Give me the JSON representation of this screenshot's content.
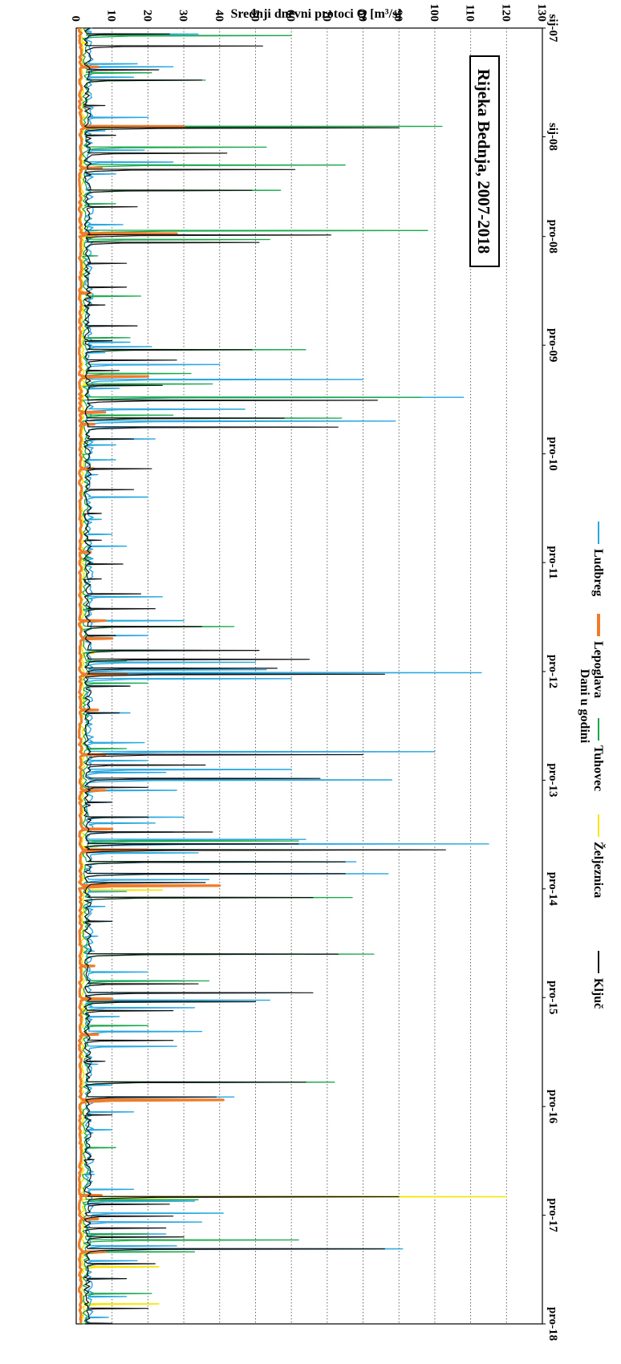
{
  "chart_data": {
    "type": "line",
    "title": "Rijeka Bednja, 2007-2018",
    "ylabel": "Srednji dnevni protoci Q [m³/s]",
    "xlabel": "Dani u godini",
    "ylim": [
      0,
      130
    ],
    "y_ticks": [
      0,
      10,
      20,
      30,
      40,
      50,
      60,
      70,
      80,
      90,
      100,
      110,
      120,
      130
    ],
    "x_ticks": [
      "sij-07",
      "sij-08",
      "pro-08",
      "pro-09",
      "pro-10",
      "pro-11",
      "pro-12",
      "pro-13",
      "pro-14",
      "pro-15",
      "pro-16",
      "pro-17",
      "pro-18"
    ],
    "x_tick_positions": [
      0,
      365,
      700,
      1065,
      1430,
      1795,
      2161,
      2526,
      2891,
      3256,
      3622,
      3987,
      4352
    ],
    "grid": "horizontal dotted",
    "orientation": "rotated 90° clockwise",
    "legend_position": "bottom",
    "series": [
      {
        "name": "Ludbreg",
        "color": "#29a8e0",
        "peaks": [
          [
            20,
            34
          ],
          [
            120,
            17
          ],
          [
            130,
            27
          ],
          [
            165,
            16
          ],
          [
            300,
            20
          ],
          [
            345,
            8
          ],
          [
            360,
            10
          ],
          [
            410,
            19
          ],
          [
            450,
            27
          ],
          [
            490,
            11
          ],
          [
            660,
            13
          ],
          [
            680,
            6
          ],
          [
            1000,
            10
          ],
          [
            1055,
            15
          ],
          [
            1070,
            21
          ],
          [
            1090,
            8
          ],
          [
            1130,
            40
          ],
          [
            1180,
            80
          ],
          [
            1210,
            12
          ],
          [
            1240,
            108
          ],
          [
            1280,
            47
          ],
          [
            1320,
            89
          ],
          [
            1340,
            41
          ],
          [
            1380,
            22
          ],
          [
            1400,
            11
          ],
          [
            1450,
            11
          ],
          [
            1500,
            6
          ],
          [
            1575,
            20
          ],
          [
            1650,
            7
          ],
          [
            1700,
            10
          ],
          [
            1740,
            14
          ],
          [
            1800,
            6
          ],
          [
            1860,
            4
          ],
          [
            1910,
            24
          ],
          [
            1950,
            7
          ],
          [
            1990,
            30
          ],
          [
            2040,
            20
          ],
          [
            2090,
            35
          ],
          [
            2130,
            50
          ],
          [
            2155,
            53
          ],
          [
            2165,
            113
          ],
          [
            2185,
            60
          ],
          [
            2210,
            15
          ],
          [
            2300,
            15
          ],
          [
            2400,
            19
          ],
          [
            2430,
            100
          ],
          [
            2460,
            20
          ],
          [
            2490,
            60
          ],
          [
            2500,
            25
          ],
          [
            2525,
            88
          ],
          [
            2560,
            28
          ],
          [
            2600,
            10
          ],
          [
            2650,
            30
          ],
          [
            2670,
            22
          ],
          [
            2700,
            27
          ],
          [
            2725,
            64
          ],
          [
            2740,
            115
          ],
          [
            2770,
            34
          ],
          [
            2800,
            78
          ],
          [
            2840,
            87
          ],
          [
            2860,
            37
          ],
          [
            2900,
            14
          ],
          [
            2950,
            8
          ],
          [
            3000,
            10
          ],
          [
            3050,
            6
          ],
          [
            3100,
            5
          ],
          [
            3170,
            20
          ],
          [
            3200,
            30
          ],
          [
            3240,
            60
          ],
          [
            3265,
            54
          ],
          [
            3290,
            33
          ],
          [
            3320,
            12
          ],
          [
            3370,
            35
          ],
          [
            3420,
            28
          ],
          [
            3480,
            6
          ],
          [
            3550,
            10
          ],
          [
            3590,
            44
          ],
          [
            3640,
            16
          ],
          [
            3700,
            10
          ],
          [
            3850,
            5
          ],
          [
            3900,
            16
          ],
          [
            3940,
            33
          ],
          [
            3980,
            41
          ],
          [
            4010,
            35
          ],
          [
            4050,
            25
          ],
          [
            4090,
            28
          ],
          [
            4100,
            91
          ],
          [
            4140,
            17
          ],
          [
            4200,
            12
          ],
          [
            4260,
            14
          ],
          [
            4330,
            9
          ]
        ]
      },
      {
        "name": "Lepoglava",
        "color": "#f07c2a",
        "peaks": [
          [
            130,
            6
          ],
          [
            330,
            30
          ],
          [
            470,
            7
          ],
          [
            690,
            28
          ],
          [
            890,
            4
          ],
          [
            1170,
            20
          ],
          [
            1290,
            8
          ],
          [
            1330,
            5
          ],
          [
            1480,
            5
          ],
          [
            1760,
            4
          ],
          [
            1990,
            8
          ],
          [
            2050,
            10
          ],
          [
            2170,
            14
          ],
          [
            2290,
            6
          ],
          [
            2440,
            8
          ],
          [
            2560,
            8
          ],
          [
            2690,
            10
          ],
          [
            2760,
            20
          ],
          [
            2880,
            40
          ],
          [
            3150,
            5
          ],
          [
            3260,
            10
          ],
          [
            3380,
            6
          ],
          [
            3600,
            41
          ],
          [
            3920,
            7
          ],
          [
            4000,
            6
          ],
          [
            4110,
            8
          ]
        ]
      },
      {
        "name": "Tuhovec",
        "color": "#18a84a",
        "peaks": [
          [
            25,
            60
          ],
          [
            150,
            21
          ],
          [
            175,
            36
          ],
          [
            330,
            102
          ],
          [
            400,
            53
          ],
          [
            460,
            75
          ],
          [
            545,
            57
          ],
          [
            590,
            11
          ],
          [
            680,
            98
          ],
          [
            710,
            54
          ],
          [
            765,
            6
          ],
          [
            900,
            18
          ],
          [
            1040,
            15
          ],
          [
            1080,
            64
          ],
          [
            1160,
            32
          ],
          [
            1195,
            38
          ],
          [
            1240,
            96
          ],
          [
            1300,
            27
          ],
          [
            1310,
            74
          ],
          [
            1430,
            4
          ],
          [
            1780,
            4
          ],
          [
            1950,
            8
          ],
          [
            2010,
            44
          ],
          [
            2090,
            27
          ],
          [
            2125,
            14
          ],
          [
            2200,
            20
          ],
          [
            2420,
            14
          ],
          [
            2730,
            62
          ],
          [
            2760,
            81
          ],
          [
            2800,
            70
          ],
          [
            2880,
            37
          ],
          [
            2920,
            77
          ],
          [
            3000,
            8
          ],
          [
            3110,
            83
          ],
          [
            3200,
            37
          ],
          [
            3270,
            40
          ],
          [
            3350,
            20
          ],
          [
            3540,
            72
          ],
          [
            3760,
            11
          ],
          [
            3850,
            2
          ],
          [
            3935,
            34
          ],
          [
            4050,
            20
          ],
          [
            4070,
            62
          ],
          [
            4110,
            33
          ],
          [
            4250,
            21
          ],
          [
            4350,
            5
          ]
        ]
      },
      {
        "name": "Željeznica",
        "color": "#f5e600",
        "peaks": [
          [
            50,
            3
          ],
          [
            300,
            3
          ],
          [
            700,
            6
          ],
          [
            1200,
            3
          ],
          [
            1790,
            2
          ],
          [
            2100,
            5
          ],
          [
            2750,
            6
          ],
          [
            2895,
            24
          ],
          [
            3300,
            5
          ],
          [
            3600,
            5
          ],
          [
            3925,
            120
          ],
          [
            4000,
            5
          ],
          [
            4160,
            23
          ],
          [
            4285,
            23
          ]
        ]
      },
      {
        "name": "Ključ",
        "color": "#111111",
        "peaks": [
          [
            20,
            26
          ],
          [
            60,
            52
          ],
          [
            140,
            23
          ],
          [
            175,
            35
          ],
          [
            260,
            8
          ],
          [
            335,
            90
          ],
          [
            360,
            11
          ],
          [
            420,
            42
          ],
          [
            475,
            61
          ],
          [
            545,
            49
          ],
          [
            600,
            17
          ],
          [
            695,
            71
          ],
          [
            720,
            51
          ],
          [
            790,
            14
          ],
          [
            870,
            14
          ],
          [
            930,
            8
          ],
          [
            1000,
            17
          ],
          [
            1050,
            10
          ],
          [
            1080,
            49
          ],
          [
            1115,
            28
          ],
          [
            1150,
            12
          ],
          [
            1200,
            24
          ],
          [
            1250,
            84
          ],
          [
            1310,
            58
          ],
          [
            1340,
            73
          ],
          [
            1380,
            16
          ],
          [
            1480,
            21
          ],
          [
            1550,
            16
          ],
          [
            1630,
            7
          ],
          [
            1720,
            7
          ],
          [
            1800,
            13
          ],
          [
            1850,
            7
          ],
          [
            1900,
            18
          ],
          [
            1950,
            22
          ],
          [
            2010,
            35
          ],
          [
            2040,
            11
          ],
          [
            2090,
            51
          ],
          [
            2120,
            65
          ],
          [
            2150,
            56
          ],
          [
            2170,
            86
          ],
          [
            2210,
            15
          ],
          [
            2300,
            12
          ],
          [
            2440,
            80
          ],
          [
            2475,
            36
          ],
          [
            2520,
            68
          ],
          [
            2550,
            20
          ],
          [
            2600,
            10
          ],
          [
            2650,
            20
          ],
          [
            2700,
            38
          ],
          [
            2740,
            62
          ],
          [
            2760,
            103
          ],
          [
            2800,
            75
          ],
          [
            2840,
            75
          ],
          [
            2870,
            36
          ],
          [
            2920,
            66
          ],
          [
            3000,
            10
          ],
          [
            3110,
            73
          ],
          [
            3210,
            34
          ],
          [
            3240,
            66
          ],
          [
            3270,
            50
          ],
          [
            3300,
            27
          ],
          [
            3400,
            27
          ],
          [
            3470,
            8
          ],
          [
            3540,
            64
          ],
          [
            3590,
            39
          ],
          [
            3650,
            10
          ],
          [
            3800,
            5
          ],
          [
            3925,
            90
          ],
          [
            3950,
            26
          ],
          [
            3990,
            27
          ],
          [
            4030,
            25
          ],
          [
            4060,
            30
          ],
          [
            4100,
            86
          ],
          [
            4150,
            22
          ],
          [
            4200,
            14
          ],
          [
            4300,
            20
          ],
          [
            4350,
            10
          ]
        ]
      }
    ]
  }
}
